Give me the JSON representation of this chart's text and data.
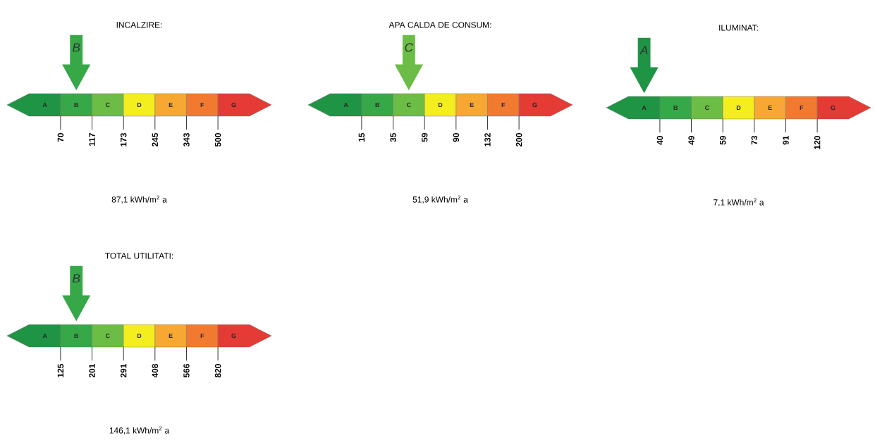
{
  "chart_data": [
    {
      "type": "other",
      "title": "INCALZIRE:",
      "categories": [
        "A",
        "B",
        "C",
        "D",
        "E",
        "F",
        "G"
      ],
      "colors": [
        "#1e9444",
        "#36a848",
        "#6cbd45",
        "#f5ee1f",
        "#f7a832",
        "#f27a30",
        "#e53b35"
      ],
      "values": [
        70,
        117,
        173,
        245,
        343,
        500,
        null
      ],
      "data_labels": true,
      "needle": "B",
      "annotations": [
        "87,1 kWh/m$^{2}$ a"
      ]
    },
    {
      "type": "other",
      "title": "APA CALDA DE CONSUM:",
      "categories": [
        "A",
        "B",
        "C",
        "D",
        "E",
        "F",
        "G"
      ],
      "colors": [
        "#1e9444",
        "#36a848",
        "#6cbd45",
        "#f5ee1f",
        "#f7a832",
        "#f27a30",
        "#e53b35"
      ],
      "values": [
        15,
        35,
        59,
        90,
        132,
        200,
        null
      ],
      "data_labels": true,
      "needle": "C",
      "annotations": [
        "51,9 kWh/m$^{2}$ a"
      ]
    },
    {
      "type": "other",
      "title": "ILUMINAT:",
      "categories": [
        "A",
        "B",
        "C",
        "D",
        "E",
        "F",
        "G"
      ],
      "colors": [
        "#1e9444",
        "#36a848",
        "#6cbd45",
        "#f5ee1f",
        "#f7a832",
        "#f27a30",
        "#e53b35"
      ],
      "values": [
        40,
        49,
        59,
        73,
        91,
        120,
        null
      ],
      "data_labels": true,
      "needle": "A",
      "annotations": [
        "7,1 kWh/m$^{2}$ a"
      ]
    },
    {
      "type": "other",
      "title": "TOTAL UTILITATI:",
      "categories": [
        "A",
        "B",
        "C",
        "D",
        "E",
        "F",
        "G"
      ],
      "colors": [
        "#1e9444",
        "#36a848",
        "#6cbd45",
        "#f5ee1f",
        "#f7a832",
        "#f27a30",
        "#e53b35"
      ],
      "values": [
        125,
        201,
        291,
        408,
        566,
        820,
        null
      ],
      "data_labels": true,
      "needle": "B",
      "annotations": [
        "146,1 kWh/m$^{2}$ a"
      ]
    }
  ]
}
